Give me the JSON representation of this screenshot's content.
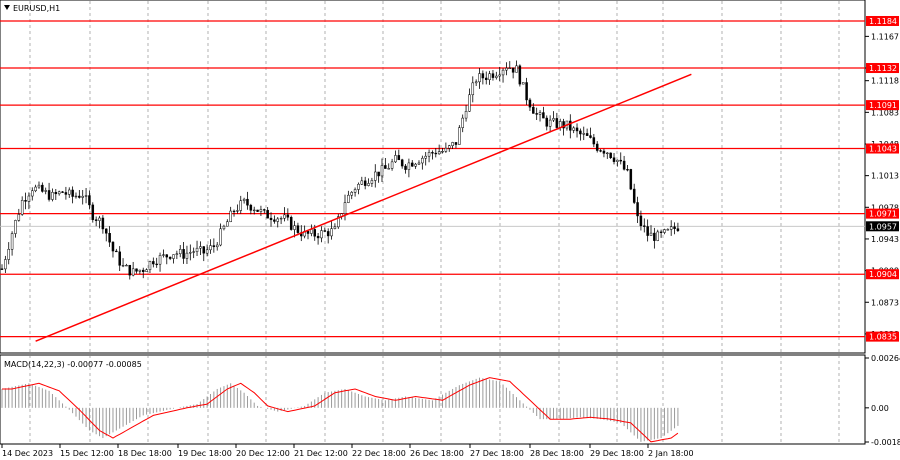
{
  "symbol_label": "EURUSD,H1",
  "macd_label": "MACD(14,22,3) -0.00077 -0.00085",
  "colors": {
    "level_line": "#ff0000",
    "trend_line": "#ff0000",
    "candle": "#000000",
    "macd_hist": "#9a9a9a",
    "signal": "#ff0000",
    "current_tag_bg": "#000000",
    "grid": "#808080"
  },
  "price_axis": {
    "min": 1.0818,
    "max": 1.1205,
    "ticks": [
      "1.1167",
      "1.1132",
      "1.1118",
      "1.1083",
      "1.1048",
      "1.1013",
      "1.0978",
      "1.0943",
      "1.0908",
      "1.0873",
      "1.0838"
    ]
  },
  "levels": [
    {
      "price": 1.1184,
      "label": "1.1184"
    },
    {
      "price": 1.1132,
      "label": "1.1132"
    },
    {
      "price": 1.1091,
      "label": "1.1091"
    },
    {
      "price": 1.1043,
      "label": "1.1043"
    },
    {
      "price": 1.0971,
      "label": "1.0971"
    },
    {
      "price": 1.0904,
      "label": "1.0904"
    },
    {
      "price": 1.0835,
      "label": "1.0835"
    }
  ],
  "current_price": {
    "price": 1.0957,
    "label": "1.0957"
  },
  "macd_axis": {
    "ticks": [
      "0.00264",
      "0.00",
      "-0.00181"
    ],
    "max": 0.00264,
    "min": -0.00181
  },
  "time_labels": [
    "14 Dec 2023",
    "15 Dec 12:00",
    "18 Dec 18:00",
    "19 Dec 18:00",
    "20 Dec 12:00",
    "21 Dec 12:00",
    "22 Dec 18:00",
    "26 Dec 18:00",
    "27 Dec 18:00",
    "28 Dec 18:00",
    "29 Dec 18:00",
    "2 Jan 18:00"
  ],
  "chart_data": {
    "type": "candlestick",
    "symbol": "EURUSD",
    "timeframe": "H1",
    "close_path": [
      [
        0,
        1.091
      ],
      [
        3,
        1.095
      ],
      [
        6,
        1.0985
      ],
      [
        9,
        1.1
      ],
      [
        12,
        1.0995
      ],
      [
        15,
        1.099
      ],
      [
        18,
        1.0995
      ],
      [
        21,
        1.099
      ],
      [
        24,
        1.0993
      ],
      [
        27,
        1.097
      ],
      [
        30,
        1.096
      ],
      [
        33,
        1.093
      ],
      [
        36,
        1.0912
      ],
      [
        39,
        1.0906
      ],
      [
        42,
        1.091
      ],
      [
        45,
        1.092
      ],
      [
        48,
        1.0923
      ],
      [
        51,
        1.0928
      ],
      [
        54,
        1.0926
      ],
      [
        57,
        1.093
      ],
      [
        60,
        1.0928
      ],
      [
        63,
        1.0935
      ],
      [
        66,
        1.0955
      ],
      [
        69,
        1.0975
      ],
      [
        72,
        1.0983
      ],
      [
        75,
        1.0978
      ],
      [
        78,
        1.097
      ],
      [
        81,
        1.0968
      ],
      [
        84,
        1.0965
      ],
      [
        87,
        1.0955
      ],
      [
        90,
        1.0948
      ],
      [
        93,
        1.0948
      ],
      [
        96,
        1.095
      ],
      [
        99,
        1.0952
      ],
      [
        102,
        1.0985
      ],
      [
        105,
        1.1
      ],
      [
        108,
        1.1008
      ],
      [
        111,
        1.1015
      ],
      [
        114,
        1.102
      ],
      [
        117,
        1.103
      ],
      [
        120,
        1.1025
      ],
      [
        123,
        1.103
      ],
      [
        126,
        1.1035
      ],
      [
        129,
        1.104
      ],
      [
        132,
        1.104
      ],
      [
        135,
        1.105
      ],
      [
        138,
        1.109
      ],
      [
        141,
        1.112
      ],
      [
        144,
        1.1123
      ],
      [
        147,
        1.1128
      ],
      [
        150,
        1.1135
      ],
      [
        153,
        1.113
      ],
      [
        156,
        1.11
      ],
      [
        159,
        1.108
      ],
      [
        162,
        1.1072
      ],
      [
        165,
        1.107
      ],
      [
        168,
        1.1068
      ],
      [
        171,
        1.106
      ],
      [
        174,
        1.1055
      ],
      [
        177,
        1.1045
      ],
      [
        180,
        1.104
      ],
      [
        183,
        1.103
      ],
      [
        186,
        1.1015
      ],
      [
        189,
        1.0965
      ],
      [
        192,
        1.0948
      ],
      [
        195,
        1.0945
      ],
      [
        198,
        1.095
      ],
      [
        201,
        1.0957
      ]
    ],
    "trend_line": {
      "start": [
        10,
        1.083
      ],
      "end": [
        205,
        1.1125
      ]
    },
    "macd_hist_path": [
      [
        0,
        0.001
      ],
      [
        8,
        0.0013
      ],
      [
        14,
        0.0009
      ],
      [
        20,
        -0.0001
      ],
      [
        26,
        -0.0012
      ],
      [
        30,
        -0.0016
      ],
      [
        36,
        -0.001
      ],
      [
        42,
        -0.0004
      ],
      [
        52,
        0.0
      ],
      [
        58,
        0.0002
      ],
      [
        64,
        0.001
      ],
      [
        68,
        0.0013
      ],
      [
        72,
        0.0008
      ],
      [
        76,
        0.0001
      ],
      [
        82,
        -0.0002
      ],
      [
        90,
        0.0001
      ],
      [
        96,
        0.0008
      ],
      [
        102,
        0.001
      ],
      [
        108,
        0.0006
      ],
      [
        114,
        0.0004
      ],
      [
        120,
        0.0006
      ],
      [
        128,
        0.0004
      ],
      [
        136,
        0.0012
      ],
      [
        142,
        0.0016
      ],
      [
        148,
        0.0014
      ],
      [
        154,
        0.0004
      ],
      [
        160,
        -0.0006
      ],
      [
        166,
        -0.0006
      ],
      [
        172,
        -0.0005
      ],
      [
        178,
        -0.0006
      ],
      [
        184,
        -0.0008
      ],
      [
        190,
        -0.0018
      ],
      [
        196,
        -0.0016
      ],
      [
        203,
        -0.0007
      ]
    ]
  }
}
